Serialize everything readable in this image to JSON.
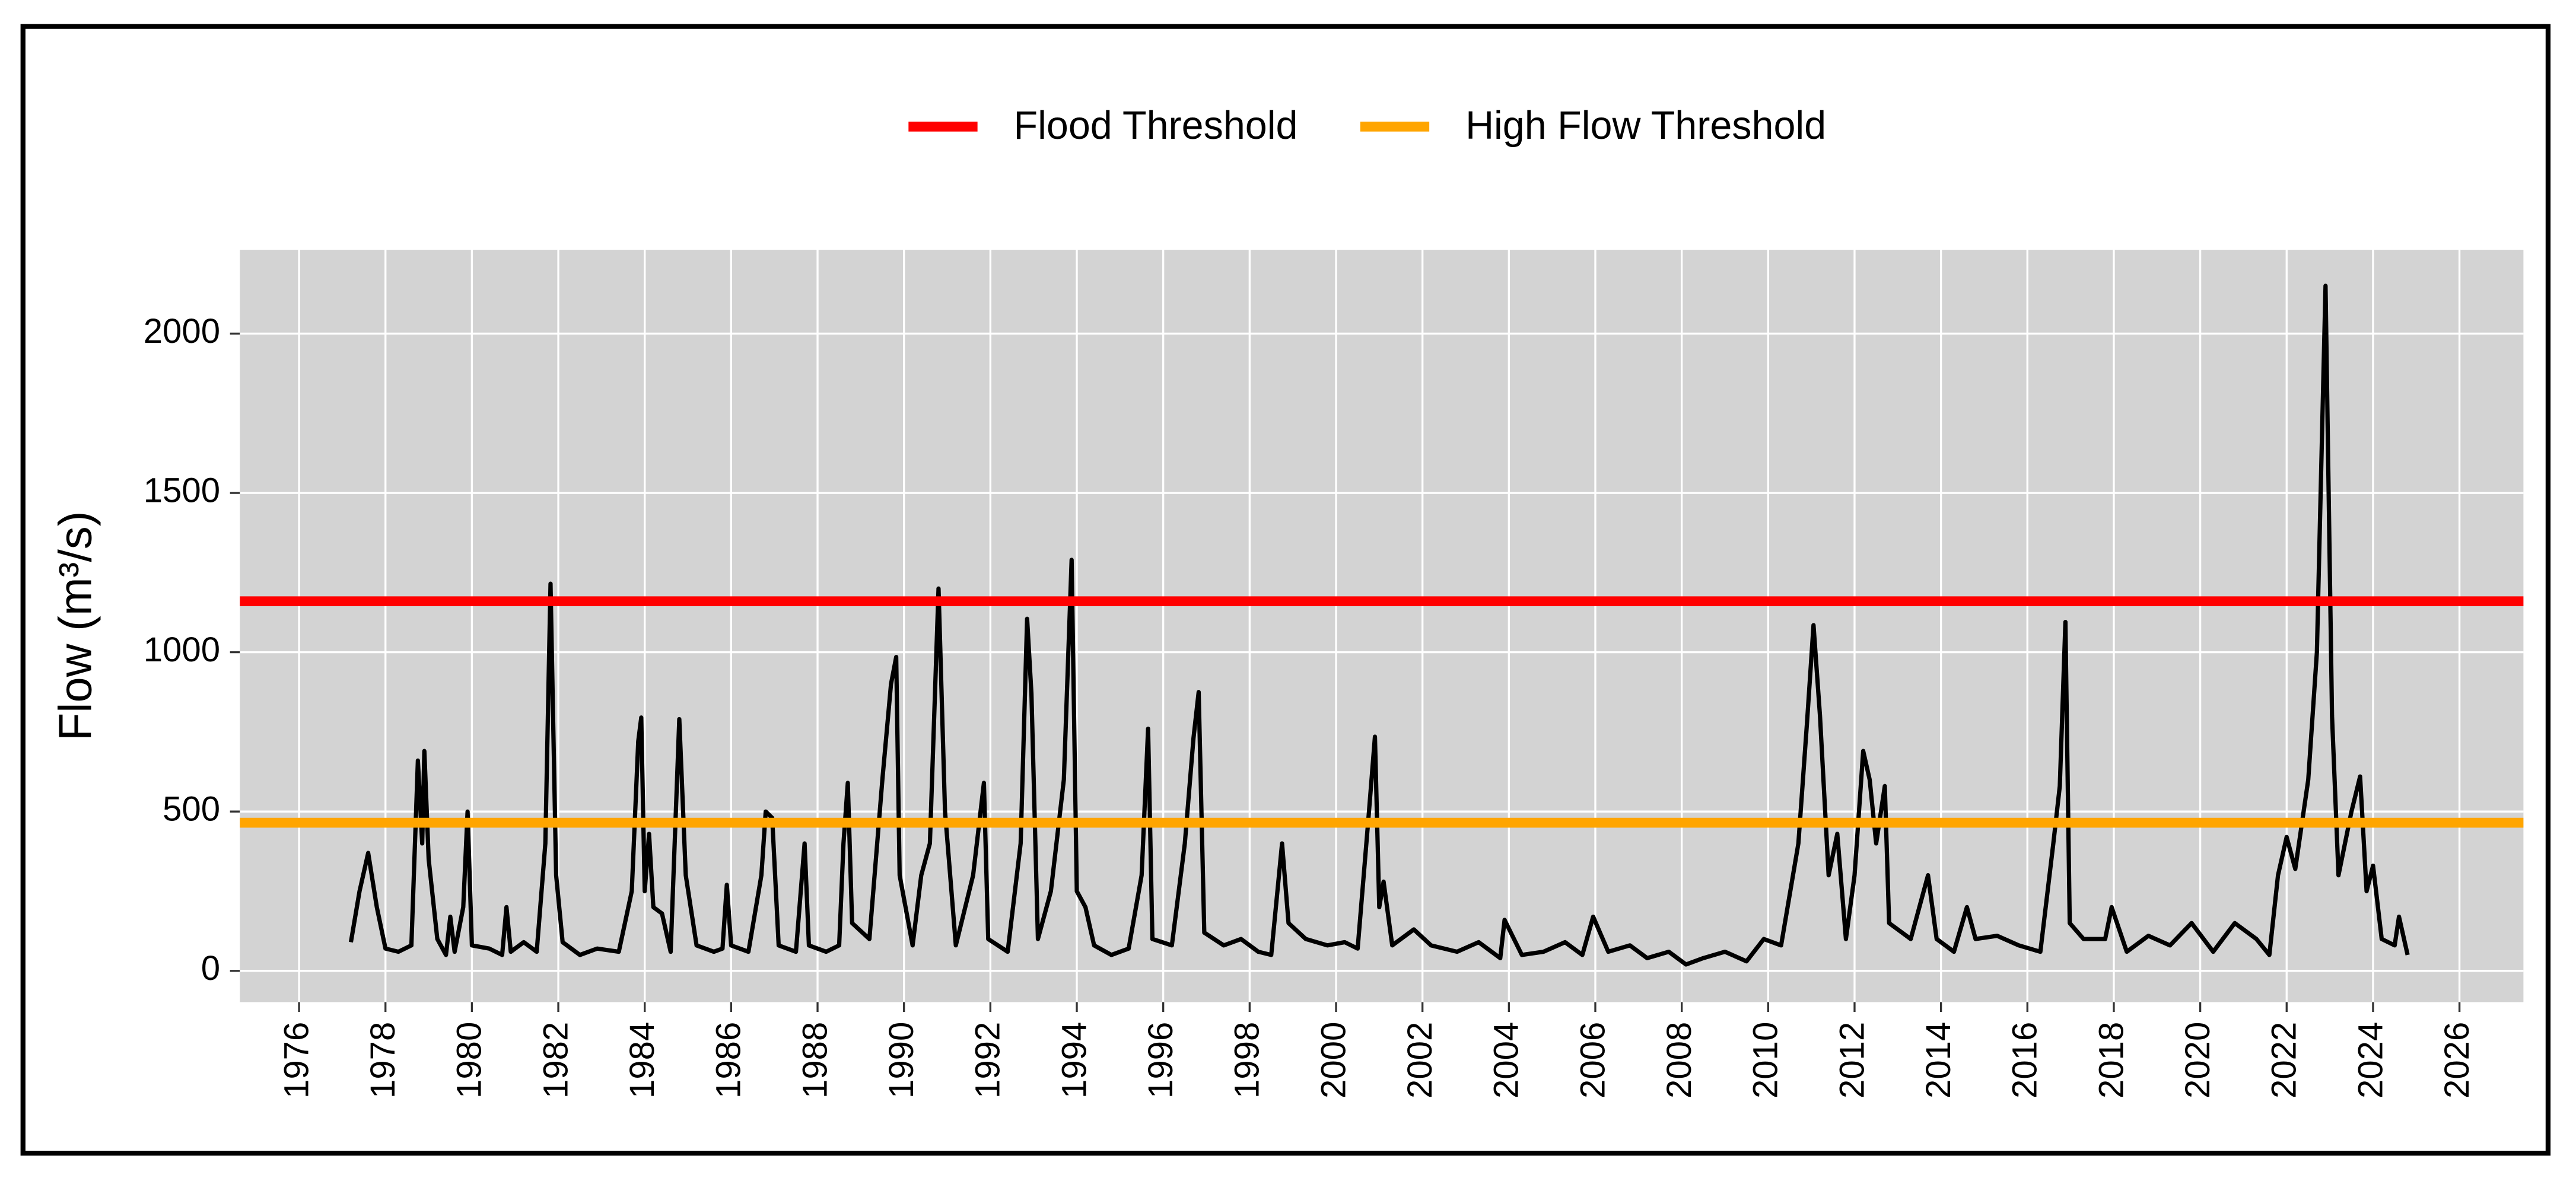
{
  "chart_data": {
    "type": "line",
    "ylabel": "Flow (m³/s)",
    "xlim": [
      1974.63,
      2027.48
    ],
    "xticks": [
      1976,
      1978,
      1980,
      1982,
      1984,
      1986,
      1988,
      1990,
      1992,
      1994,
      1996,
      1998,
      2000,
      2002,
      2004,
      2006,
      2008,
      2010,
      2012,
      2014,
      2016,
      2018,
      2020,
      2022,
      2024,
      2026
    ],
    "ylim": [
      -98,
      2263
    ],
    "yticks": [
      0,
      500,
      1000,
      1500,
      2000
    ],
    "grid": true,
    "legend": "top",
    "background": "#d3d3d3",
    "thresholds": [
      {
        "name": "Flood Threshold",
        "color": "#ff0000",
        "value": 1160
      },
      {
        "name": "High Flow Threshold",
        "color": "#ffa500",
        "value": 465
      }
    ],
    "series": [
      {
        "color": "#000000",
        "x": [
          1977.2,
          1977.4,
          1977.6,
          1977.8,
          1978.0,
          1978.3,
          1978.6,
          1978.75,
          1978.85,
          1978.9,
          1979.0,
          1979.2,
          1979.4,
          1979.5,
          1979.6,
          1979.8,
          1979.9,
          1980.0,
          1980.4,
          1980.7,
          1980.8,
          1980.9,
          1981.2,
          1981.5,
          1981.7,
          1981.82,
          1981.95,
          1982.1,
          1982.5,
          1982.9,
          1983.4,
          1983.7,
          1983.85,
          1983.92,
          1984.0,
          1984.1,
          1984.2,
          1984.4,
          1984.6,
          1984.8,
          1984.95,
          1985.2,
          1985.6,
          1985.8,
          1985.9,
          1986.0,
          1986.4,
          1986.7,
          1986.8,
          1986.95,
          1987.1,
          1987.5,
          1987.7,
          1987.8,
          1988.2,
          1988.5,
          1988.6,
          1988.7,
          1988.8,
          1989.2,
          1989.5,
          1989.7,
          1989.82,
          1989.9,
          1990.2,
          1990.4,
          1990.6,
          1990.8,
          1990.95,
          1991.2,
          1991.6,
          1991.85,
          1991.95,
          1992.4,
          1992.7,
          1992.85,
          1992.95,
          1993.1,
          1993.4,
          1993.7,
          1993.88,
          1994.0,
          1994.2,
          1994.4,
          1994.8,
          1995.2,
          1995.5,
          1995.65,
          1995.75,
          1996.2,
          1996.5,
          1996.7,
          1996.82,
          1996.95,
          1997.4,
          1997.8,
          1998.2,
          1998.5,
          1998.75,
          1998.9,
          1999.3,
          1999.8,
          2000.2,
          2000.5,
          2000.75,
          2000.9,
          2001.0,
          2001.1,
          2001.3,
          2001.8,
          2002.2,
          2002.8,
          2003.3,
          2003.8,
          2003.9,
          2004.3,
          2004.8,
          2005.3,
          2005.7,
          2005.95,
          2006.3,
          2006.8,
          2007.2,
          2007.7,
          2008.1,
          2008.5,
          2009.0,
          2009.5,
          2009.9,
          2010.3,
          2010.7,
          2010.9,
          2011.05,
          2011.2,
          2011.4,
          2011.6,
          2011.8,
          2012.0,
          2012.2,
          2012.35,
          2012.5,
          2012.7,
          2012.8,
          2013.3,
          2013.7,
          2013.9,
          2014.3,
          2014.6,
          2014.8,
          2015.3,
          2015.8,
          2016.3,
          2016.6,
          2016.75,
          2016.88,
          2016.98,
          2017.3,
          2017.8,
          2017.95,
          2018.3,
          2018.8,
          2019.3,
          2019.8,
          2020.3,
          2020.8,
          2021.3,
          2021.6,
          2021.8,
          2022.0,
          2022.2,
          2022.5,
          2022.7,
          2022.9,
          2023.05,
          2023.2,
          2023.5,
          2023.7,
          2023.85,
          2024.0,
          2024.2,
          2024.5,
          2024.6,
          2024.8
        ],
        "values": [
          90,
          250,
          370,
          200,
          70,
          60,
          80,
          660,
          400,
          690,
          350,
          100,
          50,
          170,
          60,
          200,
          500,
          80,
          70,
          50,
          200,
          60,
          90,
          60,
          400,
          1215,
          300,
          90,
          50,
          70,
          60,
          250,
          720,
          795,
          250,
          430,
          200,
          180,
          60,
          790,
          300,
          80,
          60,
          70,
          270,
          80,
          60,
          300,
          500,
          480,
          80,
          60,
          400,
          80,
          60,
          80,
          400,
          590,
          150,
          100,
          600,
          900,
          985,
          300,
          80,
          300,
          400,
          1200,
          500,
          80,
          300,
          590,
          100,
          60,
          400,
          1105,
          870,
          100,
          250,
          600,
          1290,
          250,
          200,
          80,
          50,
          70,
          300,
          760,
          100,
          80,
          400,
          730,
          875,
          120,
          80,
          100,
          60,
          50,
          400,
          150,
          100,
          80,
          90,
          70,
          480,
          735,
          200,
          280,
          80,
          130,
          80,
          60,
          90,
          40,
          160,
          50,
          60,
          90,
          50,
          170,
          60,
          80,
          40,
          60,
          20,
          40,
          60,
          30,
          100,
          80,
          400,
          780,
          1085,
          800,
          300,
          430,
          100,
          300,
          690,
          600,
          400,
          580,
          150,
          100,
          300,
          100,
          60,
          200,
          100,
          110,
          80,
          60,
          400,
          580,
          1095,
          150,
          100,
          100,
          200,
          60,
          110,
          80,
          150,
          60,
          150,
          100,
          50,
          300,
          420,
          320,
          600,
          1000,
          2150,
          800,
          300,
          500,
          610,
          250,
          330,
          100,
          80,
          170,
          50
        ]
      }
    ]
  }
}
